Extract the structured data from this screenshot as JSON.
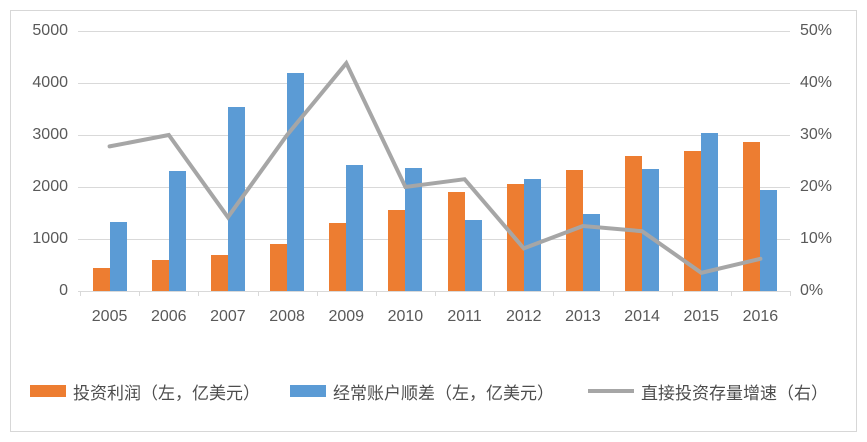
{
  "chart_data": {
    "type": "bar+line",
    "title": "",
    "categories": [
      "2005",
      "2006",
      "2007",
      "2008",
      "2009",
      "2010",
      "2011",
      "2012",
      "2013",
      "2014",
      "2015",
      "2016"
    ],
    "series": [
      {
        "name": "投资利润（左，亿美元）",
        "type": "bar",
        "axis": "left",
        "color": "#ED7D31",
        "values": [
          450,
          600,
          700,
          900,
          1300,
          1550,
          1900,
          2050,
          2320,
          2600,
          2700,
          2870
        ]
      },
      {
        "name": "经常账户顺差（左，亿美元）",
        "type": "bar",
        "axis": "left",
        "color": "#5B9BD5",
        "values": [
          1320,
          2310,
          3530,
          4200,
          2430,
          2370,
          1360,
          2150,
          1480,
          2350,
          3040,
          1950
        ]
      },
      {
        "name": "直接投资存量增速（右）",
        "type": "line",
        "axis": "right",
        "color": "#A6A6A6",
        "values": [
          27.8,
          30,
          14.2,
          30,
          43.8,
          20,
          21.5,
          8.2,
          12.5,
          11.5,
          3.5,
          6.2
        ]
      }
    ],
    "left_axis": {
      "min": 0,
      "max": 5000,
      "step": 1000,
      "tick_labels": [
        "5000",
        "4000",
        "3000",
        "2000",
        "1000",
        "0"
      ]
    },
    "right_axis": {
      "min": 0,
      "max": 50,
      "step": 10,
      "tick_labels": [
        "50%",
        "40%",
        "30%",
        "20%",
        "10%",
        "0%"
      ]
    },
    "grid": true,
    "legend_position": "bottom"
  },
  "colors": {
    "grid": "#D9D9D9",
    "axis_text": "#595959",
    "frame_border": "#D7D7D7",
    "background": "#FFFFFF"
  }
}
